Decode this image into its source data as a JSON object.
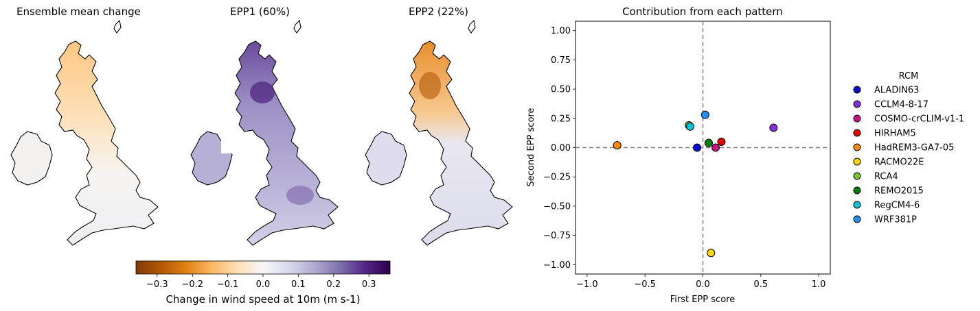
{
  "maps": {
    "panels": [
      {
        "title": "Ensemble mean change"
      },
      {
        "title": "EPP1 (60%)"
      },
      {
        "title": "EPP2 (22%)"
      }
    ],
    "colorbar": {
      "label": "Change in wind speed at 10m (m s-1)",
      "ticks": [
        "−0.3",
        "−0.2",
        "−0.1",
        "0.0",
        "0.1",
        "0.2",
        "0.3"
      ],
      "tick_values": [
        -0.3,
        -0.2,
        -0.1,
        0.0,
        0.1,
        0.2,
        0.3
      ],
      "range": [
        -0.36,
        0.36
      ],
      "colors": [
        "#7f3b08",
        "#b35806",
        "#e08214",
        "#fdb863",
        "#fee0b6",
        "#f7f7f7",
        "#d8daeb",
        "#b2abd2",
        "#8073ac",
        "#542788",
        "#2d004b"
      ]
    }
  },
  "chart_data": {
    "type": "scatter",
    "title": "Contribution from each pattern",
    "xlabel": "First EPP score",
    "ylabel": "Second EPP score",
    "xlim": [
      -1.1,
      1.1
    ],
    "ylim": [
      -1.08,
      1.08
    ],
    "xticks": [
      "−1.0",
      "−0.5",
      "0.0",
      "0.5",
      "1.0"
    ],
    "xtick_values": [
      -1.0,
      -0.5,
      0.0,
      0.5,
      1.0
    ],
    "yticks": [
      "−1.00",
      "−0.75",
      "−0.50",
      "−0.25",
      "0.00",
      "0.25",
      "0.50",
      "0.75",
      "1.00"
    ],
    "ytick_values": [
      -1.0,
      -0.75,
      -0.5,
      -0.25,
      0.0,
      0.25,
      0.5,
      0.75,
      1.0
    ],
    "reference_lines": {
      "x": 0.0,
      "y": 0.0,
      "style": "dashed"
    },
    "legend_title": "RCM",
    "legend_position": "right, outside",
    "series": [
      {
        "name": "ALADIN63",
        "x": -0.05,
        "y": 0.0,
        "color": "#0a0ad2"
      },
      {
        "name": "CCLM4-8-17",
        "x": 0.61,
        "y": 0.17,
        "color": "#8a2be2"
      },
      {
        "name": "COSMO-crCLIM-v1-1",
        "x": 0.11,
        "y": 0.0,
        "color": "#c71585"
      },
      {
        "name": "HIRHAM5",
        "x": 0.16,
        "y": 0.05,
        "color": "#e60000"
      },
      {
        "name": "HadREM3-GA7-05",
        "x": -0.74,
        "y": 0.02,
        "color": "#ff8c00"
      },
      {
        "name": "RACMO22E",
        "x": 0.07,
        "y": -0.9,
        "color": "#ffd700"
      },
      {
        "name": "RCA4",
        "x": -0.12,
        "y": 0.19,
        "color": "#7cc42a"
      },
      {
        "name": "REMO2015",
        "x": 0.05,
        "y": 0.04,
        "color": "#008000"
      },
      {
        "name": "RegCM4-6",
        "x": -0.11,
        "y": 0.18,
        "color": "#00c8d7"
      },
      {
        "name": "WRF381P",
        "x": 0.02,
        "y": 0.28,
        "color": "#1e90ff"
      }
    ]
  }
}
